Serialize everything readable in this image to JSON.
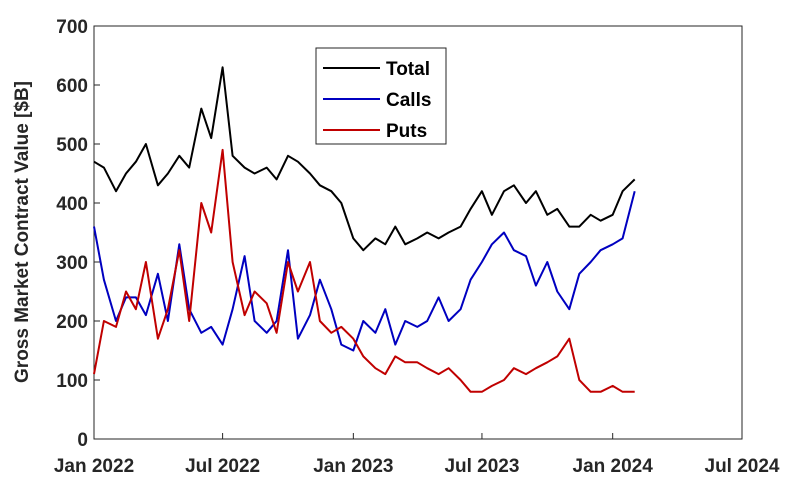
{
  "chart_data": {
    "type": "line",
    "title": "",
    "xlabel": "",
    "ylabel": "Gross Market Contract Value [$B]",
    "x_tick_labels": [
      "Jan 2022",
      "Jul 2022",
      "Jan 2023",
      "Jul 2023",
      "Jan 2024",
      "Jul 2024"
    ],
    "y_tick_labels": [
      "0",
      "100",
      "200",
      "300",
      "400",
      "500",
      "600",
      "700"
    ],
    "xlim": [
      "2022-01-01",
      "2024-07-01"
    ],
    "ylim": [
      0,
      700
    ],
    "grid": false,
    "legend_position": "top-center",
    "x": [
      "2022-01-01",
      "2022-01-15",
      "2022-02-01",
      "2022-02-15",
      "2022-03-01",
      "2022-03-15",
      "2022-04-01",
      "2022-04-15",
      "2022-05-01",
      "2022-05-15",
      "2022-06-01",
      "2022-06-15",
      "2022-07-01",
      "2022-07-15",
      "2022-08-01",
      "2022-08-15",
      "2022-09-01",
      "2022-09-15",
      "2022-10-01",
      "2022-10-15",
      "2022-11-01",
      "2022-11-15",
      "2022-12-01",
      "2022-12-15",
      "2023-01-01",
      "2023-01-15",
      "2023-02-01",
      "2023-02-15",
      "2023-03-01",
      "2023-03-15",
      "2023-04-01",
      "2023-04-15",
      "2023-05-01",
      "2023-05-15",
      "2023-06-01",
      "2023-06-15",
      "2023-07-01",
      "2023-07-15",
      "2023-08-01",
      "2023-08-15",
      "2023-09-01",
      "2023-09-15",
      "2023-10-01",
      "2023-10-15",
      "2023-11-01",
      "2023-11-15",
      "2023-12-01",
      "2023-12-15",
      "2024-01-01",
      "2024-01-15",
      "2024-02-01"
    ],
    "series": [
      {
        "name": "Total",
        "color": "#000000",
        "values": [
          470,
          460,
          420,
          450,
          470,
          500,
          430,
          450,
          480,
          460,
          560,
          510,
          630,
          480,
          460,
          450,
          460,
          440,
          480,
          470,
          450,
          430,
          420,
          400,
          340,
          320,
          340,
          330,
          360,
          330,
          340,
          350,
          340,
          350,
          360,
          390,
          420,
          380,
          420,
          430,
          400,
          420,
          380,
          390,
          360,
          360,
          380,
          370,
          380,
          420,
          440
        ]
      },
      {
        "name": "Calls",
        "color": "#0000c0",
        "values": [
          360,
          270,
          200,
          240,
          240,
          210,
          280,
          200,
          330,
          220,
          180,
          190,
          160,
          220,
          310,
          200,
          180,
          200,
          320,
          170,
          210,
          270,
          220,
          160,
          150,
          200,
          180,
          220,
          160,
          200,
          190,
          200,
          240,
          200,
          220,
          270,
          300,
          330,
          350,
          320,
          310,
          260,
          300,
          250,
          220,
          280,
          300,
          320,
          330,
          340,
          420
        ]
      },
      {
        "name": "Puts",
        "color": "#c00000",
        "values": [
          110,
          200,
          190,
          250,
          220,
          300,
          170,
          220,
          320,
          200,
          400,
          350,
          490,
          300,
          210,
          250,
          230,
          180,
          300,
          250,
          300,
          200,
          180,
          190,
          170,
          140,
          120,
          110,
          140,
          130,
          130,
          120,
          110,
          120,
          100,
          80,
          80,
          90,
          100,
          120,
          110,
          120,
          130,
          140,
          170,
          100,
          80,
          80,
          90,
          80,
          80
        ]
      }
    ]
  }
}
